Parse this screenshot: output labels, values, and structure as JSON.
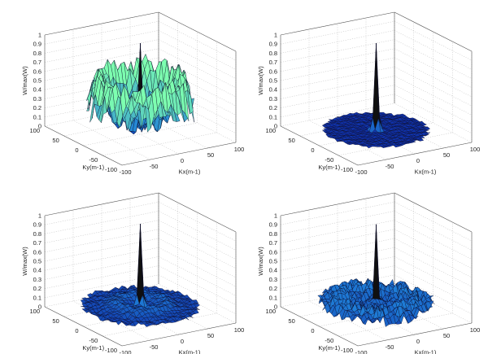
{
  "chart_data": [
    {
      "type": "surface3d",
      "panel": "top-left",
      "zlabel": "W/max(W)",
      "xlabel": "Kx(m-1)",
      "ylabel": "Ky(m-1)",
      "xlim": [
        -100,
        100
      ],
      "ylim": [
        -100,
        100
      ],
      "zlim": [
        0,
        1
      ],
      "xticks": [
        "-100",
        "-50",
        "0",
        "50",
        "100"
      ],
      "yticks": [
        "100",
        "50",
        "0",
        "-50",
        "-100"
      ],
      "zticks": [
        "0",
        "0.1",
        "0.2",
        "0.3",
        "0.4",
        "0.5",
        "0.6",
        "0.7",
        "0.8",
        "0.9",
        "1"
      ],
      "shape": {
        "peak": 1.0,
        "peak_width": 3,
        "ring_level": 0.45,
        "ring_radius": 62,
        "ring_width": 10,
        "base": 0.06,
        "noise": 0.22,
        "disk_radius": 80
      }
    },
    {
      "type": "surface3d",
      "panel": "top-right",
      "zlabel": "W/max(W)",
      "xlabel": "Kx(m-1)",
      "ylabel": "Ky(m-1)",
      "xlim": [
        -100,
        100
      ],
      "ylim": [
        -100,
        100
      ],
      "zlim": [
        0,
        1
      ],
      "xticks": [
        "-100",
        "-50",
        "0",
        "50",
        "100"
      ],
      "yticks": [
        "100",
        "50",
        "0",
        "-50",
        "-100"
      ],
      "zticks": [
        "0",
        "0.1",
        "0.2",
        "0.3",
        "0.4",
        "0.5",
        "0.6",
        "0.7",
        "0.8",
        "0.9",
        "1"
      ],
      "shape": {
        "peak": 1.0,
        "peak_width": 3,
        "ring_level": 0.0,
        "ring_radius": 0,
        "ring_width": 1,
        "base": 0.04,
        "noise": 0.02,
        "disk_radius": 80
      }
    },
    {
      "type": "surface3d",
      "panel": "bottom-left",
      "zlabel": "W/max(W)",
      "xlabel": "Kx(m-1)",
      "ylabel": "Ky(m-1)",
      "xlim": [
        -100,
        100
      ],
      "ylim": [
        -100,
        100
      ],
      "zlim": [
        0,
        1
      ],
      "xticks": [
        "-100",
        "-50",
        "0",
        "50",
        "100"
      ],
      "yticks": [
        "100",
        "50",
        "0",
        "-50",
        "-100"
      ],
      "zticks": [
        "0",
        "0.1",
        "0.2",
        "0.3",
        "0.4",
        "0.5",
        "0.6",
        "0.7",
        "0.8",
        "0.9",
        "1"
      ],
      "shape": {
        "peak": 1.0,
        "peak_width": 3,
        "ring_level": 0.07,
        "ring_radius": 35,
        "ring_width": 12,
        "base": 0.08,
        "noise": 0.04,
        "disk_radius": 88
      }
    },
    {
      "type": "surface3d",
      "panel": "bottom-right",
      "zlabel": "W/max(W)",
      "xlabel": "Kx(m-1)",
      "ylabel": "Ky(m-1)",
      "xlim": [
        -100,
        100
      ],
      "ylim": [
        -100,
        100
      ],
      "zlim": [
        0,
        1
      ],
      "xticks": [
        "-100",
        "-50",
        "0",
        "50",
        "100"
      ],
      "yticks": [
        "100",
        "50",
        "0",
        "-50",
        "-100"
      ],
      "zticks": [
        "0",
        "0.1",
        "0.2",
        "0.3",
        "0.4",
        "0.5",
        "0.6",
        "0.7",
        "0.8",
        "0.9",
        "1"
      ],
      "shape": {
        "peak": 0.95,
        "peak_width": 3,
        "ring_level": 0.08,
        "ring_radius": 55,
        "ring_width": 22,
        "base": 0.04,
        "noise": 0.13,
        "disk_radius": 85
      }
    }
  ],
  "colors": {
    "low": "#0a1a9a",
    "mid": "#1f7fd8",
    "high": "#7dffb0",
    "top": "#101010"
  }
}
